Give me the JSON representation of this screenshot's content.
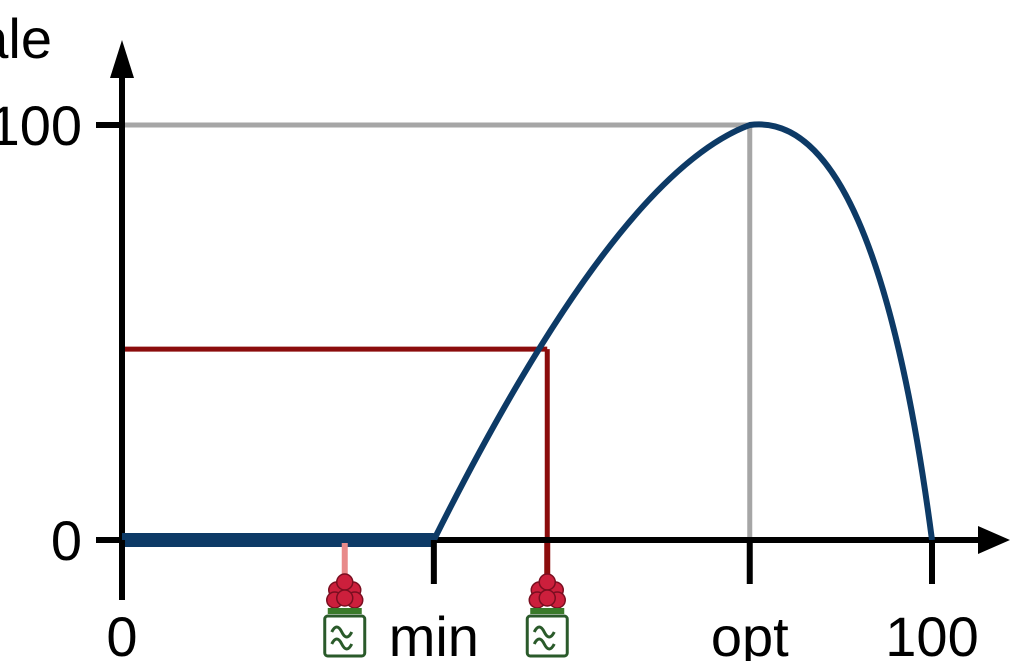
{
  "chart_data": {
    "type": "line",
    "ylabel": "ale",
    "xlim": [
      0,
      100
    ],
    "ylim": [
      0,
      100
    ],
    "x_ticks": [
      {
        "label": "0",
        "value": 0
      },
      {
        "label": "min",
        "value": 38.5
      },
      {
        "label": "opt",
        "value": 77.5
      },
      {
        "label": "100",
        "value": 100
      }
    ],
    "y_ticks": [
      {
        "label": "0",
        "value": 0
      },
      {
        "label": "100",
        "value": 100
      }
    ],
    "curve": {
      "min": 38.5,
      "opt": 77.5,
      "max": 100,
      "points": [
        [
          0,
          0
        ],
        [
          38.5,
          0
        ],
        [
          45,
          30
        ],
        [
          52.5,
          46
        ],
        [
          60,
          66
        ],
        [
          68,
          86
        ],
        [
          77.5,
          100
        ],
        [
          85,
          90
        ],
        [
          92,
          60
        ],
        [
          100,
          0
        ]
      ]
    },
    "reference_lines": [
      {
        "kind": "optimum",
        "x": 77.5,
        "y": 100,
        "color": "#a6a6a6"
      },
      {
        "kind": "reading",
        "x": 52.5,
        "y": 46,
        "color": "#8b0c0c"
      }
    ],
    "markers": [
      {
        "x": 27.5,
        "icon": "soil-plant-icon",
        "stem_color": "#e88a8a"
      },
      {
        "x": 52.5,
        "icon": "soil-plant-icon",
        "stem_color": "#8b0c0c"
      }
    ],
    "colors": {
      "curve": "#0d3a66",
      "axis": "#000000",
      "optimum_guide": "#a6a6a6",
      "reading_guide": "#8b0c0c",
      "flower": "#cc1f3c",
      "leaf": "#3a7a2a",
      "pot": "#2a5a2a"
    },
    "grid": false,
    "legend": "none"
  }
}
